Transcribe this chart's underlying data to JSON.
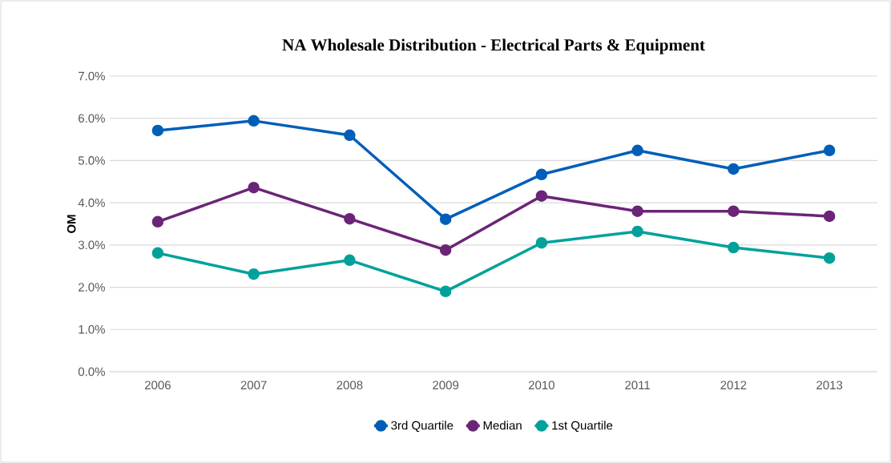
{
  "chart_data": {
    "type": "line",
    "title": "NA Wholesale Distribution - Electrical Parts & Equipment",
    "ylabel": "OM",
    "categories": [
      "2006",
      "2007",
      "2008",
      "2009",
      "2010",
      "2011",
      "2012",
      "2013"
    ],
    "series": [
      {
        "name": "3rd Quartile",
        "color": "#005eb8",
        "values": [
          5.71,
          5.94,
          5.6,
          3.61,
          4.67,
          5.24,
          4.8,
          5.24
        ]
      },
      {
        "name": "Median",
        "color": "#6b2477",
        "values": [
          3.55,
          4.36,
          3.62,
          2.88,
          4.16,
          3.8,
          3.8,
          3.68
        ]
      },
      {
        "name": "1st Quartile",
        "color": "#00a19b",
        "values": [
          2.81,
          2.31,
          2.64,
          1.9,
          3.05,
          3.32,
          2.94,
          2.69
        ]
      }
    ],
    "ylim": [
      0,
      7
    ],
    "yticks": [
      {
        "value": 0,
        "label": "0.0%"
      },
      {
        "value": 1,
        "label": "1.0%"
      },
      {
        "value": 2,
        "label": "2.0%"
      },
      {
        "value": 3,
        "label": "3.0%"
      },
      {
        "value": 4,
        "label": "4.0%"
      },
      {
        "value": 5,
        "label": "5.0%"
      },
      {
        "value": 6,
        "label": "6.0%"
      },
      {
        "value": 7,
        "label": "7.0%"
      }
    ],
    "grid": "y",
    "legend": "bottom",
    "marker": "circle",
    "line_style": "solid"
  }
}
